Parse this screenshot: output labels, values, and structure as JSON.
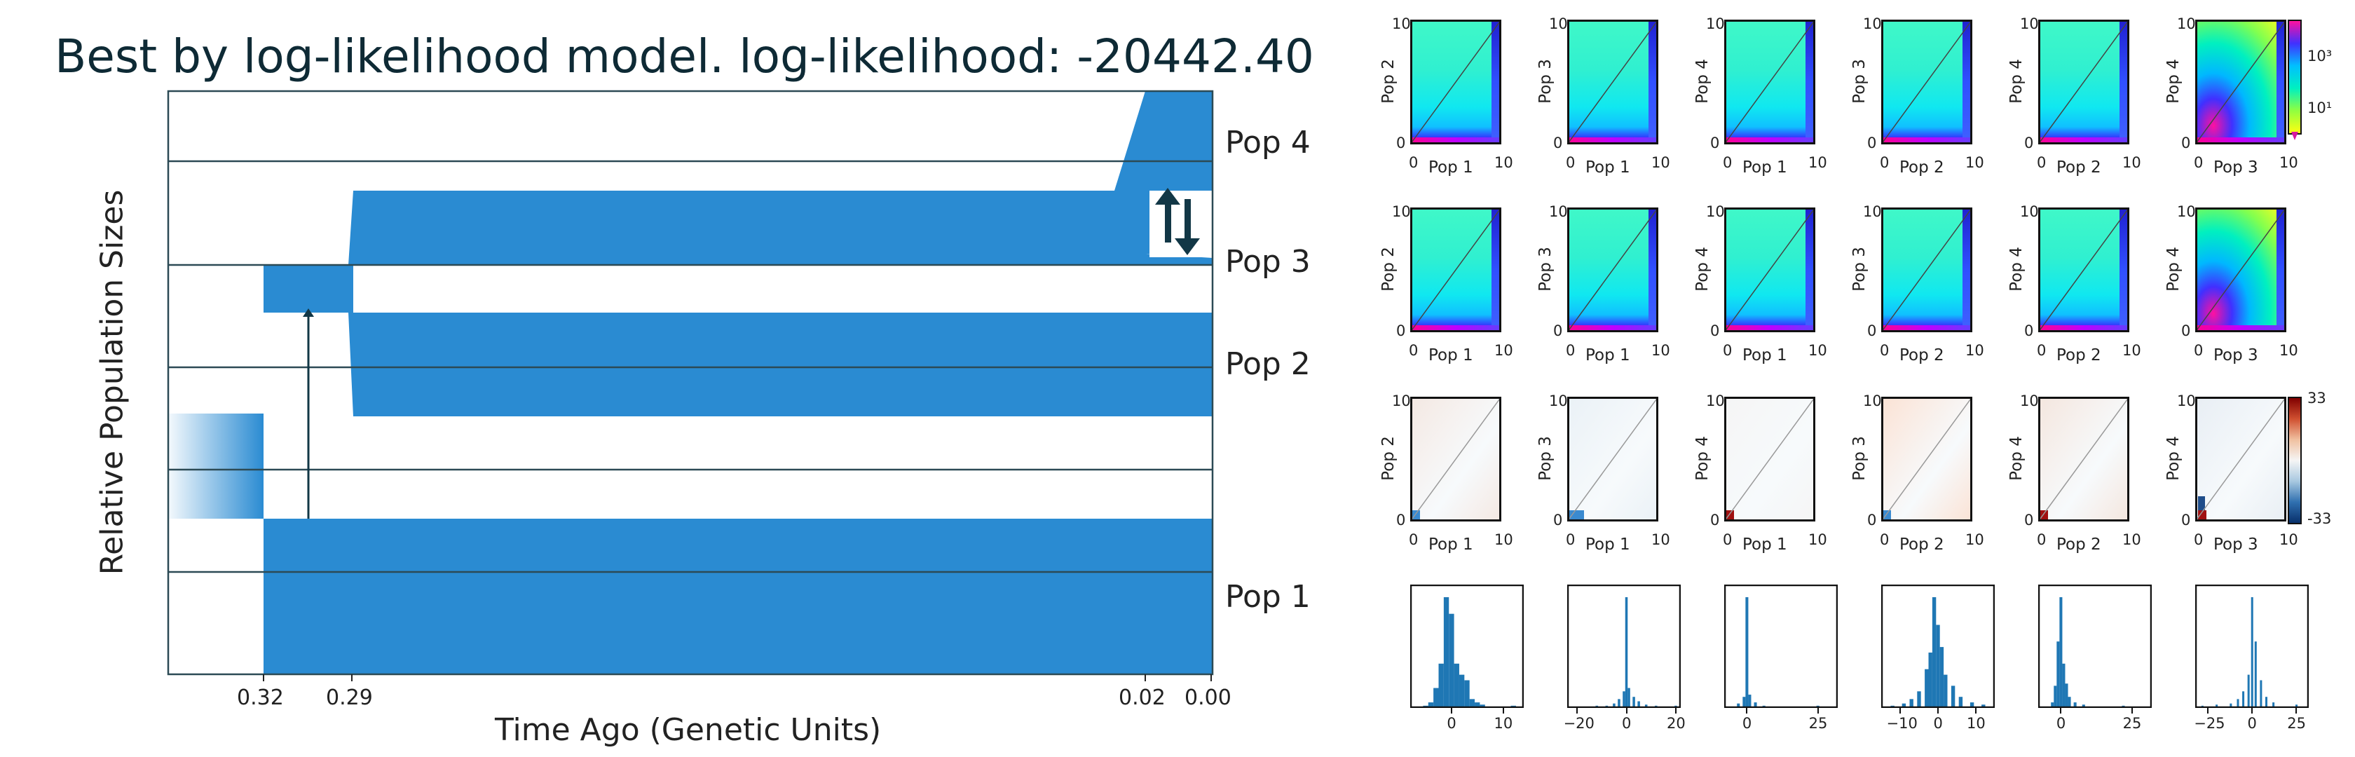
{
  "left_chart": {
    "title": "Best by log-likelihood model. log-likelihood: -20442.40",
    "xlabel": "Time Ago (Genetic Units)",
    "ylabel": "Relative Population Sizes",
    "xticks": [
      "0.32",
      "0.29",
      "0.02",
      "0.00"
    ],
    "pop_labels": [
      "Pop 4",
      "Pop 3",
      "Pop 2",
      "Pop 1"
    ],
    "color": "#2a8bd2"
  },
  "sfs": {
    "row1": [
      {
        "x": "Pop 1",
        "y": "Pop 2"
      },
      {
        "x": "Pop 1",
        "y": "Pop 3"
      },
      {
        "x": "Pop 1",
        "y": "Pop 4"
      },
      {
        "x": "Pop 2",
        "y": "Pop 3"
      },
      {
        "x": "Pop 2",
        "y": "Pop 4"
      },
      {
        "x": "Pop 3",
        "y": "Pop 4"
      }
    ],
    "axis_min": "0",
    "axis_max": "10",
    "colorbar1": {
      "top": "10³",
      "bottom": "10¹"
    },
    "colorbar2": {
      "top": "33",
      "bottom": "-33"
    }
  },
  "histograms": [
    {
      "ticks": [
        "0",
        "10"
      ]
    },
    {
      "ticks": [
        "−20",
        "0",
        "20"
      ]
    },
    {
      "ticks": [
        "0",
        "25"
      ]
    },
    {
      "ticks": [
        "−10",
        "0",
        "10"
      ]
    },
    {
      "ticks": [
        "0",
        "25"
      ]
    },
    {
      "ticks": [
        "−25",
        "0",
        "25"
      ]
    }
  ],
  "chart_data": {
    "type": "histogram",
    "title": "",
    "series": [
      {
        "bin_centers": [
          -5,
          -4,
          -3,
          -2,
          -1,
          0,
          1,
          2,
          3,
          4,
          5,
          6,
          12
        ],
        "counts": [
          2,
          5,
          18,
          40,
          100,
          85,
          40,
          30,
          25,
          8,
          5,
          3,
          2
        ]
      },
      {
        "bin_centers": [
          -18,
          -12,
          -8,
          -5,
          -3,
          -1,
          0,
          1,
          3,
          5,
          8,
          12,
          20
        ],
        "counts": [
          1,
          2,
          2,
          4,
          8,
          15,
          100,
          18,
          10,
          6,
          3,
          2,
          2
        ]
      },
      {
        "bin_centers": [
          -3,
          -1,
          0,
          1,
          3,
          6,
          25
        ],
        "counts": [
          4,
          10,
          100,
          12,
          5,
          2,
          2
        ]
      },
      {
        "bin_centers": [
          -12,
          -9,
          -7,
          -5,
          -3,
          -2,
          -1,
          0,
          1,
          2,
          4,
          6,
          9,
          12
        ],
        "counts": [
          2,
          4,
          8,
          15,
          35,
          50,
          100,
          75,
          55,
          30,
          20,
          10,
          5,
          3
        ]
      },
      {
        "bin_centers": [
          -3,
          -2,
          -1,
          0,
          1,
          2,
          3,
          5,
          8,
          22
        ],
        "counts": [
          5,
          20,
          60,
          100,
          40,
          22,
          10,
          5,
          3,
          2
        ]
      },
      {
        "bin_centers": [
          -28,
          -20,
          -12,
          -8,
          -5,
          -2,
          0,
          2,
          5,
          8,
          12,
          25
        ],
        "counts": [
          2,
          3,
          4,
          8,
          15,
          30,
          100,
          60,
          25,
          10,
          5,
          3
        ]
      }
    ]
  }
}
